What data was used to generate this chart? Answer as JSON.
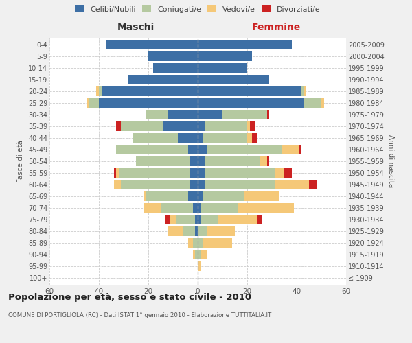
{
  "age_groups": [
    "100+",
    "95-99",
    "90-94",
    "85-89",
    "80-84",
    "75-79",
    "70-74",
    "65-69",
    "60-64",
    "55-59",
    "50-54",
    "45-49",
    "40-44",
    "35-39",
    "30-34",
    "25-29",
    "20-24",
    "15-19",
    "10-14",
    "5-9",
    "0-4"
  ],
  "birth_years": [
    "≤ 1909",
    "1910-1914",
    "1915-1919",
    "1920-1924",
    "1925-1929",
    "1930-1934",
    "1935-1939",
    "1940-1944",
    "1945-1949",
    "1950-1954",
    "1955-1959",
    "1960-1964",
    "1965-1969",
    "1970-1974",
    "1975-1979",
    "1980-1984",
    "1985-1989",
    "1990-1994",
    "1995-1999",
    "2000-2004",
    "2005-2009"
  ],
  "maschi": {
    "celibi": [
      0,
      0,
      0,
      0,
      1,
      1,
      2,
      4,
      3,
      3,
      3,
      4,
      8,
      14,
      12,
      40,
      39,
      28,
      18,
      20,
      37
    ],
    "coniugati": [
      0,
      0,
      1,
      2,
      5,
      8,
      13,
      17,
      28,
      29,
      22,
      29,
      18,
      17,
      9,
      4,
      1,
      0,
      0,
      0,
      0
    ],
    "vedovi": [
      0,
      0,
      1,
      2,
      6,
      2,
      7,
      1,
      3,
      1,
      0,
      0,
      0,
      0,
      0,
      1,
      1,
      0,
      0,
      0,
      0
    ],
    "divorziati": [
      0,
      0,
      0,
      0,
      0,
      2,
      0,
      0,
      0,
      1,
      0,
      0,
      0,
      2,
      0,
      0,
      0,
      0,
      0,
      0,
      0
    ]
  },
  "femmine": {
    "nubili": [
      0,
      0,
      0,
      0,
      0,
      1,
      1,
      2,
      3,
      3,
      3,
      4,
      2,
      3,
      10,
      43,
      42,
      29,
      20,
      22,
      38
    ],
    "coniugate": [
      0,
      0,
      1,
      2,
      4,
      7,
      15,
      17,
      28,
      28,
      22,
      30,
      18,
      17,
      18,
      7,
      1,
      0,
      0,
      0,
      0
    ],
    "vedove": [
      0,
      1,
      3,
      12,
      11,
      16,
      23,
      14,
      14,
      4,
      3,
      7,
      2,
      1,
      0,
      1,
      1,
      0,
      0,
      0,
      0
    ],
    "divorziate": [
      0,
      0,
      0,
      0,
      0,
      2,
      0,
      0,
      3,
      3,
      1,
      1,
      2,
      2,
      1,
      0,
      0,
      0,
      0,
      0,
      0
    ]
  },
  "colors": {
    "celibi": "#3d6fa5",
    "coniugati": "#b5c9a0",
    "vedovi": "#f5c878",
    "divorziati": "#cc2222"
  },
  "xlim": 60,
  "title": "Popolazione per età, sesso e stato civile - 2010",
  "subtitle": "COMUNE DI PORTIGLIOLA (RC) - Dati ISTAT 1° gennaio 2010 - Elaborazione TUTTITALIA.IT",
  "ylabel_left": "Fasce di età",
  "ylabel_right": "Anni di nascita",
  "xlabel_left": "Maschi",
  "xlabel_right": "Femmine",
  "bg_color": "#f0f0f0",
  "plot_bg_color": "#ffffff"
}
